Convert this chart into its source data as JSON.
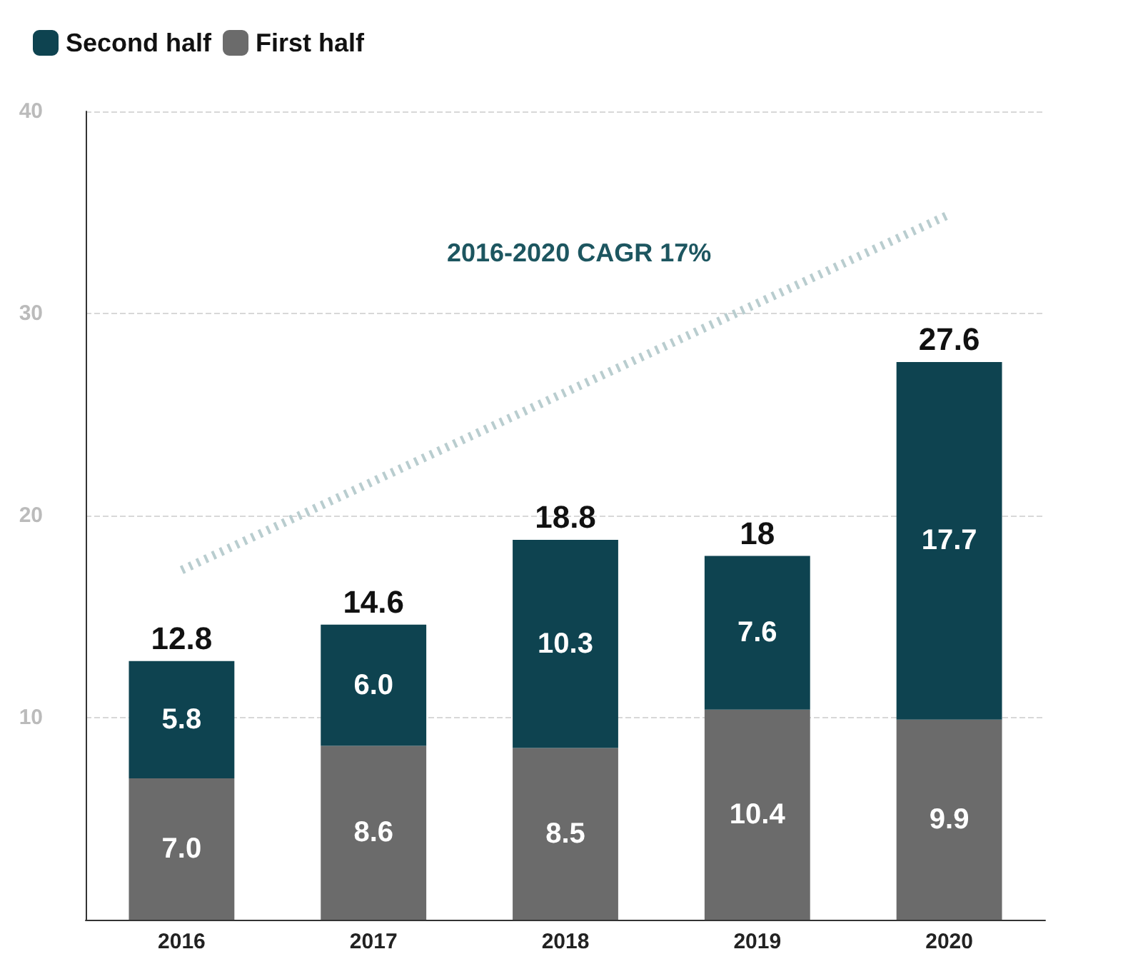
{
  "chart_data": {
    "type": "bar",
    "stacked": true,
    "categories": [
      "2016",
      "2017",
      "2018",
      "2019",
      "2020"
    ],
    "series": [
      {
        "name": "First half",
        "color": "#6b6b6b",
        "values": [
          7.0,
          8.6,
          8.5,
          10.4,
          9.9
        ],
        "value_labels": [
          "7.0",
          "8.6",
          "8.5",
          "10.4",
          "9.9"
        ]
      },
      {
        "name": "Second half",
        "color": "#0e4350",
        "values": [
          5.8,
          6.0,
          10.3,
          7.6,
          17.7
        ],
        "value_labels": [
          "5.8",
          "6.0",
          "10.3",
          "7.6",
          "17.7"
        ]
      },
      {
        "type": "line",
        "color": "#b9cdcf",
        "line_style": "dotted",
        "marker": "none",
        "values": [
          17.3,
          null,
          null,
          null,
          34.9
        ]
      }
    ],
    "totals": [
      "12.8",
      "14.6",
      "18.8",
      "18",
      "27.6"
    ],
    "ylim": [
      0,
      40
    ],
    "yticks": [
      10,
      20,
      30,
      40
    ],
    "grid": "y",
    "legend": "top left",
    "annotations": [
      "2016-2020 CAGR 17%"
    ]
  }
}
